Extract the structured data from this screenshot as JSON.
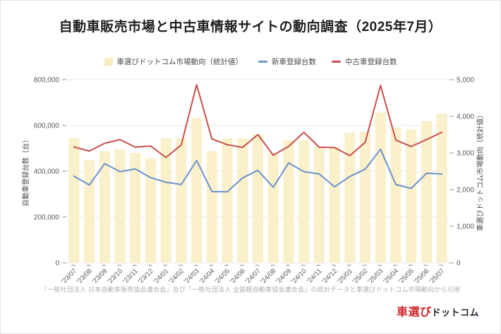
{
  "page": {
    "title": "自動車販売市場と中古車情報サイトの動向調査（2025年7月）",
    "footnote": "「一般社団法人 日本自動車販売協会連合会」及び「一般社団法人 全国軽自動車協会連合会」の統計データと車選びドットコム市場動向から引用",
    "logo": {
      "red": "車選び",
      "black": "ドットコム"
    }
  },
  "legend": [
    {
      "label": "車選びドットコム市場動向（統計値）",
      "type": "bar",
      "color": "#f7ecc0"
    },
    {
      "label": "新車登録台数",
      "type": "line",
      "color": "#6c92ce"
    },
    {
      "label": "中古車登録台数",
      "type": "line",
      "color": "#c7504c"
    }
  ],
  "colors": {
    "bar_fill": "#faf0ca",
    "new_car_line": "#6c92ce",
    "used_car_line": "#c7504c",
    "gridline": "#eaeaea",
    "tick_mark": "#9a9a9a",
    "tick_text": "#595959",
    "logo_red": "#d1232a"
  },
  "chart_data": {
    "type": "combo-bar-line",
    "title": "自動車販売市場と中古車情報サイトの動向調査（2025年7月）",
    "categories": [
      "'23/07",
      "'23/08",
      "'23/09",
      "'23/10",
      "'23/11",
      "'23/12",
      "'24/01",
      "'24/02",
      "'24/03",
      "'24/04",
      "'24/05",
      "'24/06",
      "'24/07",
      "'24/08",
      "'24/09",
      "'24/10",
      "'24/11",
      "'24/12",
      "'25/01",
      "'25/02",
      "'25/03",
      "'25/04",
      "'25/05",
      "'25/06",
      "'25/07"
    ],
    "series": [
      {
        "name": "車選びドットコム市場動向（統計値）",
        "type": "bar",
        "axis": "right",
        "values": [
          3400,
          2800,
          3050,
          3100,
          3000,
          2850,
          3400,
          3400,
          3950,
          3050,
          3400,
          3400,
          3500,
          3000,
          3350,
          3350,
          3175,
          3175,
          3550,
          3580,
          4100,
          3690,
          3640,
          3870,
          4070
        ]
      },
      {
        "name": "新車登録台数",
        "type": "line",
        "axis": "left",
        "values": [
          378000,
          340000,
          433000,
          398000,
          410000,
          372000,
          352000,
          342000,
          447000,
          311000,
          310000,
          371000,
          404000,
          330000,
          436000,
          398000,
          388000,
          332000,
          377000,
          409000,
          496000,
          342000,
          325000,
          391000,
          388000
        ]
      },
      {
        "name": "中古車登録台数",
        "type": "line",
        "axis": "left",
        "values": [
          506000,
          488000,
          522000,
          538000,
          505000,
          510000,
          460000,
          515000,
          778000,
          541000,
          516000,
          504000,
          560000,
          470000,
          508000,
          570000,
          505000,
          503000,
          468000,
          526000,
          775000,
          536000,
          508000,
          538000,
          570000
        ]
      }
    ],
    "left_axis": {
      "label": "自動車登録台数（台）",
      "min": 0,
      "max": 800000,
      "ticks": [
        [
          0,
          "0"
        ],
        [
          200000,
          "200,000"
        ],
        [
          400000,
          "400,000"
        ],
        [
          600000,
          "600,000"
        ],
        [
          800000,
          "800,000"
        ]
      ]
    },
    "right_axis": {
      "label": "車選びドットコム市場動向（統計値）",
      "min": 0,
      "max": 5000,
      "ticks": [
        [
          0,
          "0"
        ],
        [
          1000,
          "1,000"
        ],
        [
          2000,
          "2,000"
        ],
        [
          3000,
          "3,000"
        ],
        [
          4000,
          "4,000"
        ],
        [
          5000,
          "5,000"
        ]
      ]
    },
    "grid": true,
    "legend_position": "top"
  }
}
